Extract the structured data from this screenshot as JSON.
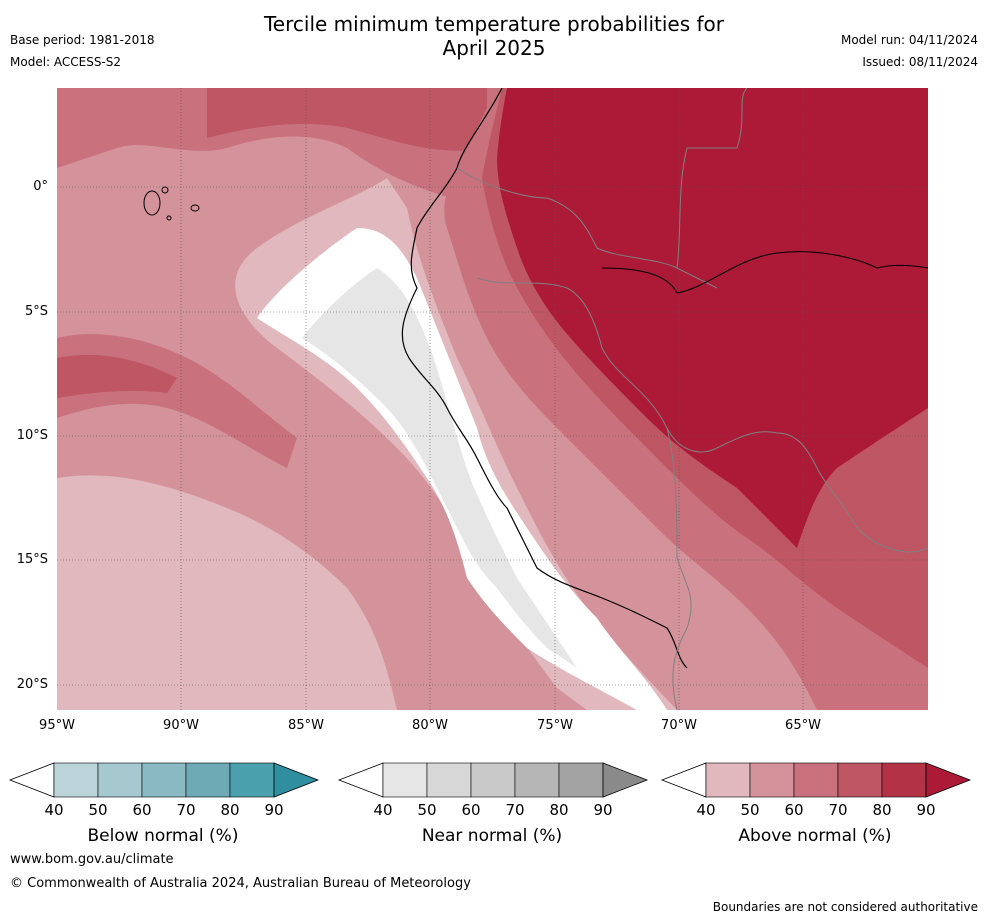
{
  "title_line1": "Tercile minimum temperature probabilities for",
  "title_line2": "April 2025",
  "base_period": "Base period: 1981-2018",
  "model": "Model: ACCESS-S2",
  "model_run": "Model run: 04/11/2024",
  "issued": "Issued: 08/11/2024",
  "lat_labels": [
    "0°",
    "5°S",
    "10°S",
    "15°S",
    "20°S"
  ],
  "lon_labels": [
    "95°W",
    "90°W",
    "85°W",
    "80°W",
    "75°W",
    "70°W",
    "65°W"
  ],
  "colorbars": [
    {
      "label": "Below normal (%)",
      "ticks": [
        "40",
        "50",
        "60",
        "70",
        "80",
        "90"
      ],
      "colors": [
        "#bcd5da",
        "#a6c9cf",
        "#8ab9c3",
        "#6eaab6",
        "#4aa0ad",
        "#2f8ea0"
      ]
    },
    {
      "label": "Near normal (%)",
      "ticks": [
        "40",
        "50",
        "60",
        "70",
        "80",
        "90"
      ],
      "colors": [
        "#e6e6e6",
        "#d7d7d7",
        "#c9c9c9",
        "#b6b6b6",
        "#a3a3a3",
        "#8a8a8a"
      ]
    },
    {
      "label": "Above normal (%)",
      "ticks": [
        "40",
        "50",
        "60",
        "70",
        "80",
        "90"
      ],
      "colors": [
        "#e0b8bd",
        "#d4929b",
        "#c9717d",
        "#bf5663",
        "#b33245",
        "#ac1a38"
      ]
    }
  ],
  "website": "www.bom.gov.au/climate",
  "copyright": "© Commonwealth of Australia 2024, Australian Bureau of Meteorology",
  "disclaimer": "Boundaries are not considered authoritative"
}
